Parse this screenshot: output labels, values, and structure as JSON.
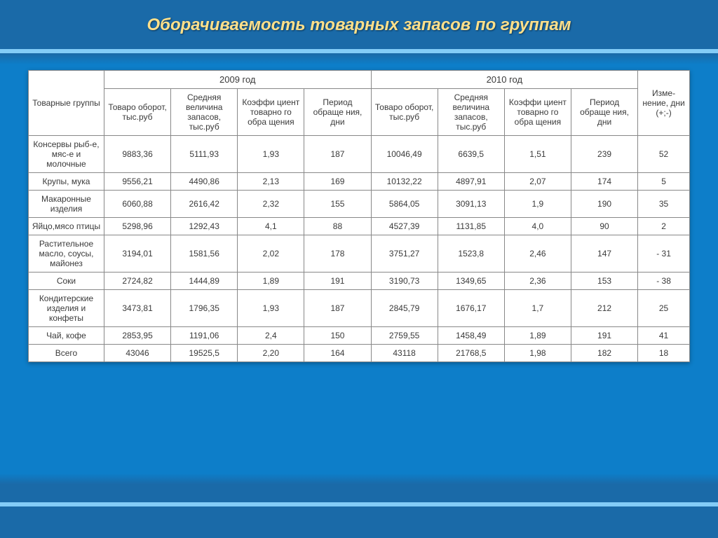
{
  "title": "Оборачиваемость товарных запасов по группам",
  "layout": {
    "background_gradient": [
      "#1a6aa8",
      "#0d7ec9",
      "#1a6aa8"
    ],
    "band_color": "#8fd7ff",
    "title_color": "#ffe08a",
    "table_border_color": "#888888",
    "table_bg": "#ffffff",
    "font_family": "Arial",
    "title_fontsize_pt": 18,
    "body_fontsize_pt": 9
  },
  "table": {
    "type": "table",
    "header": {
      "group_col": "Товарные группы",
      "year1": "2009 год",
      "year2": "2010 год",
      "change": "Изме-нение, дни (+;-)",
      "metrics": [
        "Товаро оборот, тыс.руб",
        "Средняя величина запасов, тыс.руб",
        "Коэффи циент товарно го обра щения",
        "Период обраще ния, дни"
      ]
    },
    "rows": [
      {
        "name": "Консервы рыб-е, мяс-е и молочные",
        "y1": [
          "9883,36",
          "5111,93",
          "1,93",
          "187"
        ],
        "y2": [
          "10046,49",
          "6639,5",
          "1,51",
          "239"
        ],
        "chg": "52"
      },
      {
        "name": "Крупы, мука",
        "y1": [
          "9556,21",
          "4490,86",
          "2,13",
          "169"
        ],
        "y2": [
          "10132,22",
          "4897,91",
          "2,07",
          "174"
        ],
        "chg": "5"
      },
      {
        "name": "Макаронные изделия",
        "y1": [
          "6060,88",
          "2616,42",
          "2,32",
          "155"
        ],
        "y2": [
          "5864,05",
          "3091,13",
          "1,9",
          "190"
        ],
        "chg": "35"
      },
      {
        "name": "Яйцо,мясо птицы",
        "y1": [
          "5298,96",
          "1292,43",
          "4,1",
          "88"
        ],
        "y2": [
          "4527,39",
          "1131,85",
          "4,0",
          "90"
        ],
        "chg": "2"
      },
      {
        "name": "Растительное масло, соусы, майонез",
        "y1": [
          "3194,01",
          "1581,56",
          "2,02",
          "178"
        ],
        "y2": [
          "3751,27",
          "1523,8",
          "2,46",
          "147"
        ],
        "chg": "- 31"
      },
      {
        "name": "Соки",
        "y1": [
          "2724,82",
          "1444,89",
          "1,89",
          "191"
        ],
        "y2": [
          "3190,73",
          "1349,65",
          "2,36",
          "153"
        ],
        "chg": "- 38"
      },
      {
        "name": "Кондитерские изделия и конфеты",
        "y1": [
          "3473,81",
          "1796,35",
          "1,93",
          "187"
        ],
        "y2": [
          "2845,79",
          "1676,17",
          "1,7",
          "212"
        ],
        "chg": "25"
      },
      {
        "name": "Чай, кофе",
        "y1": [
          "2853,95",
          "1191,06",
          "2,4",
          "150"
        ],
        "y2": [
          "2759,55",
          "1458,49",
          "1,89",
          "191"
        ],
        "chg": "41"
      },
      {
        "name": "Всего",
        "y1": [
          "43046",
          "19525,5",
          "2,20",
          "164"
        ],
        "y2": [
          "43118",
          "21768,5",
          "1,98",
          "182"
        ],
        "chg": "18"
      }
    ]
  }
}
